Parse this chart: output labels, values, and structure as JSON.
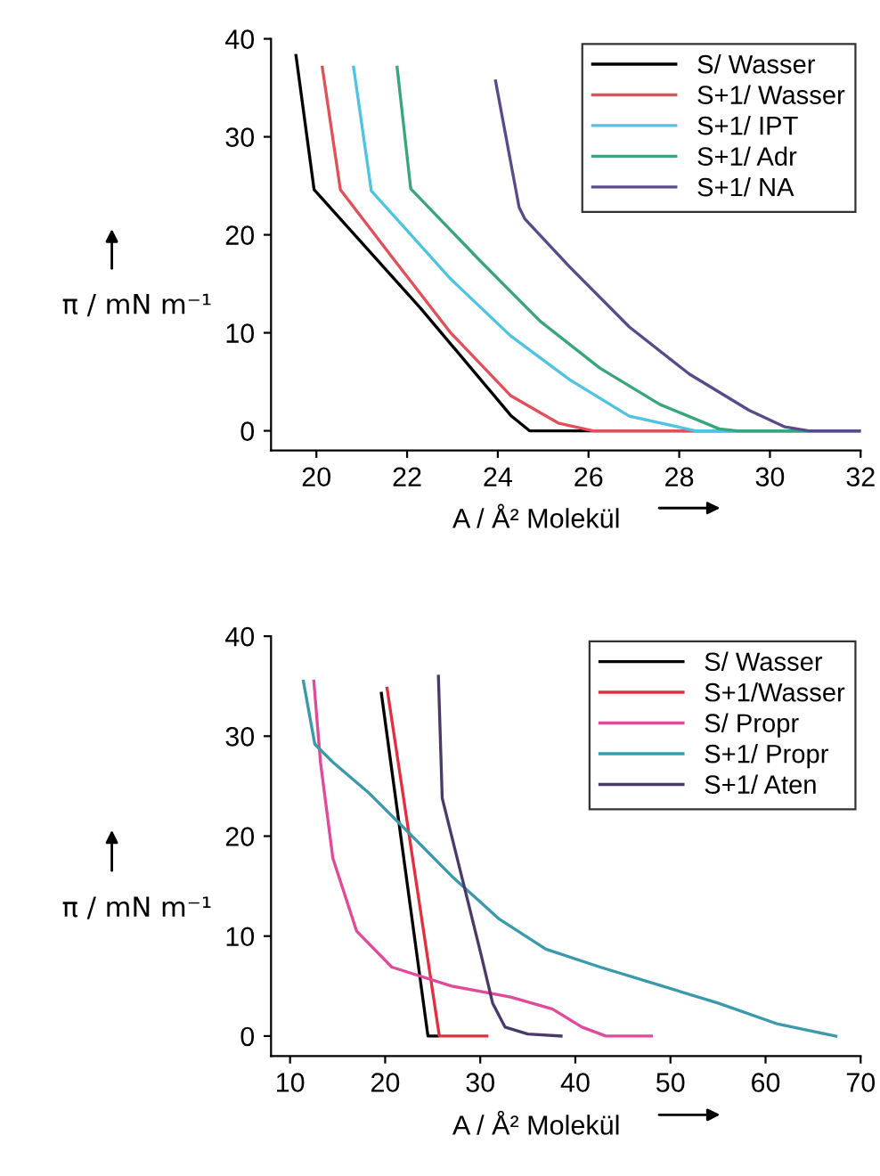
{
  "chart_data": [
    {
      "type": "line",
      "xlabel": "A / Å² Molekül",
      "ylabel": "π / mN m⁻¹",
      "xlim": [
        19,
        32
      ],
      "ylim": [
        -2,
        40
      ],
      "xticks": [
        20,
        22,
        24,
        26,
        28,
        30,
        32
      ],
      "yticks": [
        0,
        10,
        20,
        30,
        40
      ],
      "grid": false,
      "legend": "top right",
      "line_style": "solid",
      "marker": "none",
      "series": [
        {
          "name": "S/ Wasser",
          "color": "#000000",
          "x": [
            19.55,
            19.95,
            22.3,
            24.3,
            24.7,
            32
          ],
          "values": [
            38.3,
            24.6,
            12.5,
            1.5,
            0,
            0
          ]
        },
        {
          "name": "S+1/ Wasser",
          "color": "#e0505a",
          "x": [
            20.13,
            20.53,
            21.64,
            22.96,
            24.28,
            25.33,
            26.1,
            32
          ],
          "values": [
            37.1,
            24.6,
            17.9,
            10,
            3.6,
            0.8,
            0,
            0
          ]
        },
        {
          "name": "S+1/ IPT",
          "color": "#4fc3e0",
          "x": [
            20.82,
            21.21,
            22.96,
            24.28,
            25.59,
            26.9,
            28.36,
            32
          ],
          "values": [
            37.1,
            24.5,
            15.5,
            9.7,
            5.2,
            1.5,
            0,
            0
          ]
        },
        {
          "name": "S+1/ Adr",
          "color": "#3aa57a",
          "x": [
            21.78,
            22.08,
            23.62,
            24.93,
            26.25,
            27.57,
            28.88,
            29.28,
            32
          ],
          "values": [
            37.1,
            24.7,
            17.3,
            11.2,
            6.4,
            2.7,
            0.2,
            0,
            0
          ]
        },
        {
          "name": "S+1/ NA",
          "color": "#5a4a8a",
          "x": [
            23.95,
            24.47,
            24.6,
            25.59,
            26.9,
            28.22,
            29.54,
            30.33,
            30.86,
            32
          ],
          "values": [
            35.7,
            22.8,
            21.6,
            16.7,
            10.6,
            5.8,
            2.1,
            0.4,
            0,
            0
          ]
        }
      ]
    },
    {
      "type": "line",
      "xlabel": "A / Å² Molekül",
      "ylabel": "π / mN m⁻¹",
      "xlim": [
        8,
        70
      ],
      "ylim": [
        -2,
        40
      ],
      "xticks": [
        10,
        20,
        30,
        40,
        50,
        60,
        70
      ],
      "yticks": [
        0,
        10,
        20,
        30,
        40
      ],
      "grid": false,
      "legend": "top right",
      "line_style": "solid",
      "marker": "none",
      "series": [
        {
          "name": "S/ Wasser",
          "color": "#000000",
          "x": [
            19.6,
            24.5,
            25.5
          ],
          "values": [
            34.3,
            0,
            0
          ]
        },
        {
          "name": "S+1/Wasser",
          "color": "#e03040",
          "x": [
            20.2,
            25.7,
            30.7
          ],
          "values": [
            34.8,
            0,
            0
          ]
        },
        {
          "name": "S/ Propr",
          "color": "#e04a9a",
          "x": [
            12.5,
            13.2,
            14.5,
            17,
            20.7,
            27,
            33.2,
            37.6,
            40.7,
            43.2,
            48
          ],
          "values": [
            35.5,
            27.4,
            17.8,
            10.5,
            6.9,
            5.0,
            3.9,
            2.7,
            0.9,
            0,
            0
          ]
        },
        {
          "name": "S+1/ Propr",
          "color": "#3a9aaa",
          "x": [
            11.4,
            12.6,
            14.5,
            18.2,
            22,
            27,
            32,
            36.9,
            42.6,
            48.8,
            55,
            61.3,
            67.4
          ],
          "values": [
            35.5,
            29.2,
            27.4,
            24.4,
            20.8,
            16,
            11.7,
            8.7,
            6.9,
            5.1,
            3.3,
            1.2,
            0
          ]
        },
        {
          "name": "S+1/ Aten",
          "color": "#4a3a6a",
          "x": [
            25.6,
            26,
            28.2,
            30.1,
            31.3,
            32.6,
            35,
            38.5
          ],
          "values": [
            36,
            23.8,
            15.4,
            8.1,
            3.3,
            0.9,
            0.2,
            0
          ]
        }
      ]
    }
  ]
}
